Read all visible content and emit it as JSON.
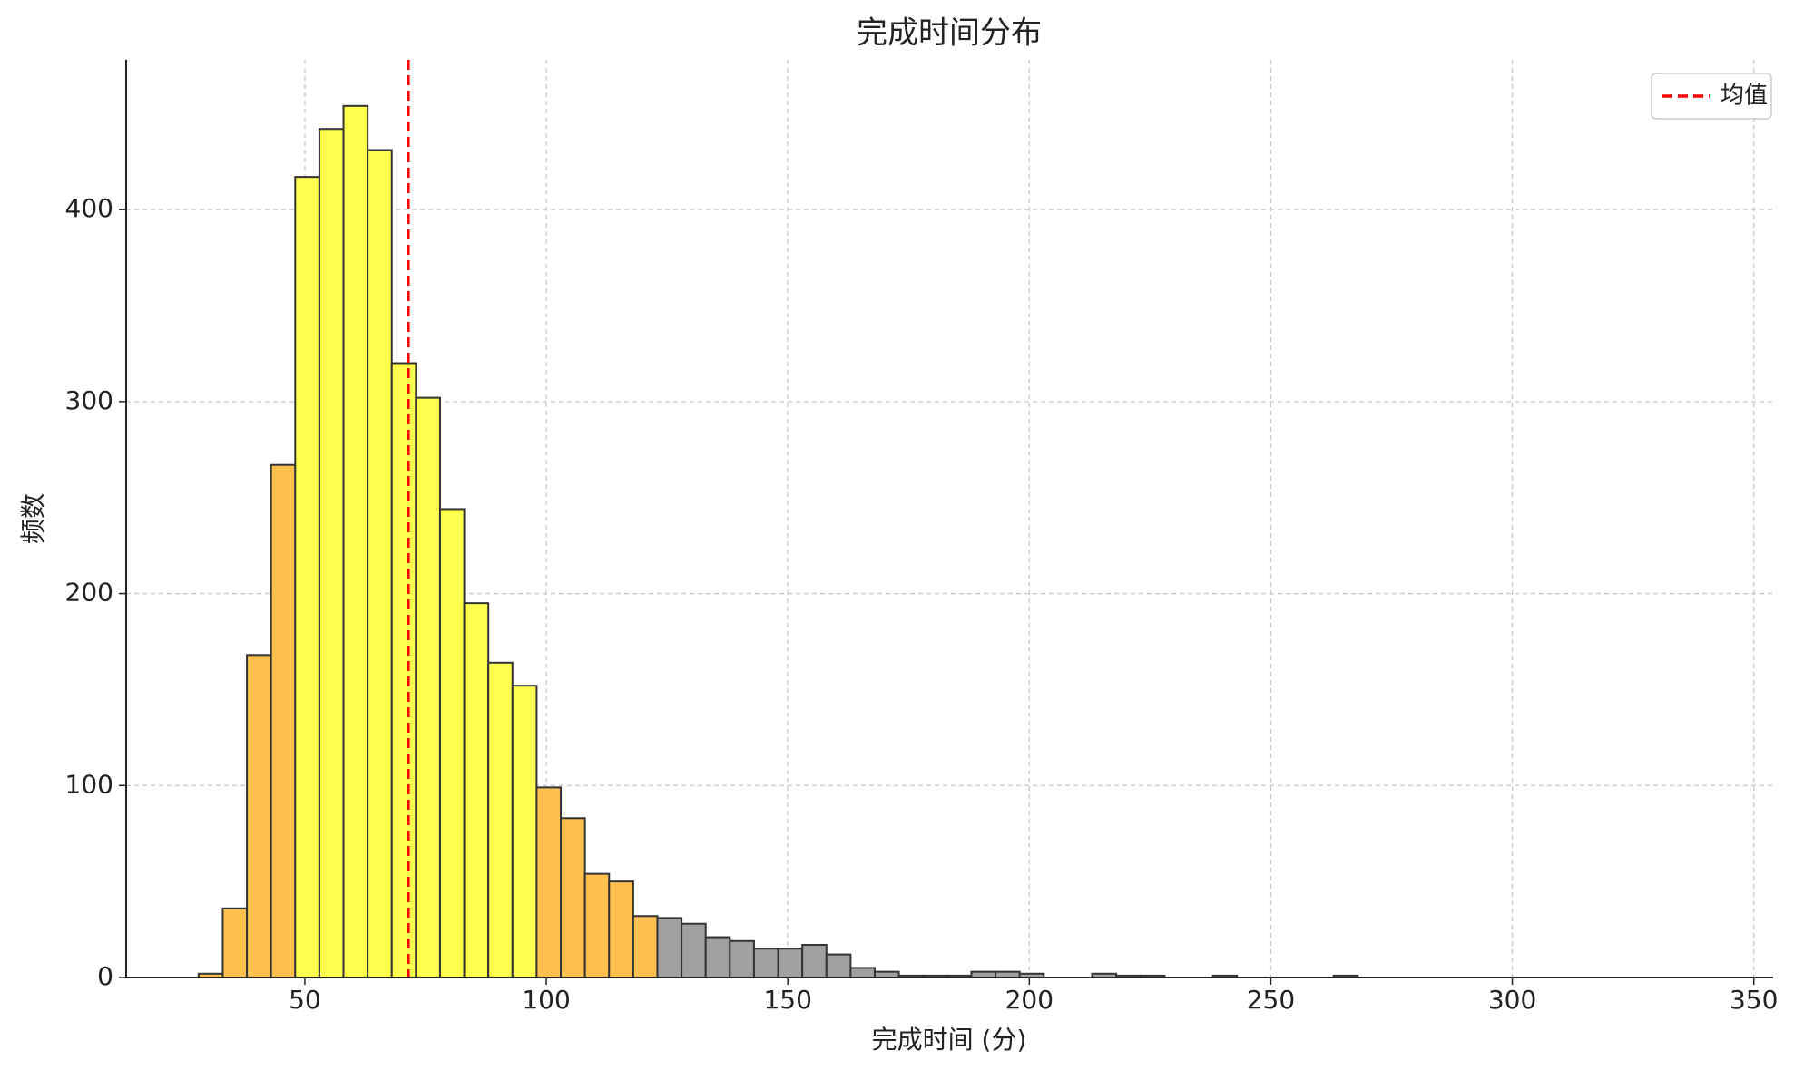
{
  "chart_data": {
    "type": "histogram",
    "title": "完成时间分布",
    "xlabel": "完成时间 (分)",
    "ylabel": "频数",
    "bins": [
      28,
      33,
      38,
      43,
      48,
      53,
      58,
      63,
      68,
      73,
      78,
      83,
      88,
      93,
      98,
      103,
      108,
      113,
      118,
      123,
      128,
      133,
      138,
      143,
      148,
      153,
      158,
      163,
      168,
      173,
      178,
      183,
      188,
      193,
      198,
      203,
      208,
      213,
      218,
      223,
      228,
      233,
      238,
      243,
      248,
      253,
      258,
      263,
      268
    ],
    "values": [
      2,
      36,
      168,
      267,
      417,
      442,
      454,
      431,
      320,
      302,
      244,
      195,
      164,
      152,
      99,
      83,
      54,
      50,
      32,
      31,
      28,
      21,
      19,
      15,
      15,
      17,
      12,
      5,
      3,
      1,
      1,
      1,
      3,
      3,
      2,
      0,
      0,
      2,
      1,
      1,
      0,
      0,
      1,
      0,
      0,
      0,
      0,
      1
    ],
    "bar_colors": [
      "#ffc04d",
      "#ffc04d",
      "#ffc04d",
      "#ffc04d",
      "#ffff4d",
      "#ffff4d",
      "#ffff4d",
      "#ffff4d",
      "#ffff4d",
      "#ffff4d",
      "#ffff4d",
      "#ffff4d",
      "#ffff4d",
      "#ffff4d",
      "#ffc04d",
      "#ffc04d",
      "#ffc04d",
      "#ffc04d",
      "#ffc04d",
      "#a0a0a0",
      "#a0a0a0",
      "#a0a0a0",
      "#a0a0a0",
      "#a0a0a0",
      "#a0a0a0",
      "#a0a0a0",
      "#a0a0a0",
      "#a0a0a0",
      "#a0a0a0",
      "#a0a0a0",
      "#a0a0a0",
      "#a0a0a0",
      "#a0a0a0",
      "#a0a0a0",
      "#a0a0a0",
      "#a0a0a0",
      "#a0a0a0",
      "#a0a0a0",
      "#a0a0a0",
      "#a0a0a0",
      "#a0a0a0",
      "#a0a0a0",
      "#a0a0a0",
      "#a0a0a0",
      "#a0a0a0",
      "#a0a0a0",
      "#a0a0a0",
      "#a0a0a0"
    ],
    "mean_line": {
      "value": 71.4,
      "label": "均值",
      "color": "#ff0000"
    },
    "xlim": [
      13,
      354
    ],
    "ylim": [
      0,
      478
    ],
    "xticks": [
      50,
      100,
      150,
      200,
      250,
      300,
      350
    ],
    "yticks": [
      0,
      100,
      200,
      300,
      400
    ],
    "grid": true,
    "legend": "upper right"
  }
}
